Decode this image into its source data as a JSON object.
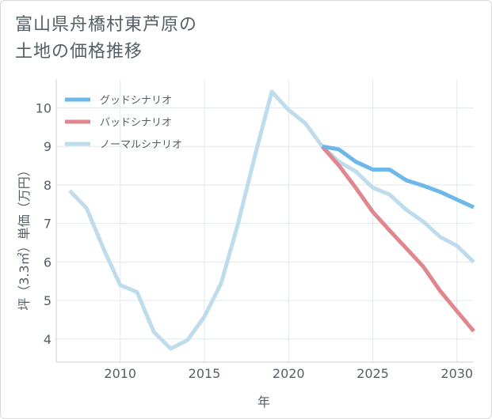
{
  "title_lines": [
    "富山県舟橋村東芦原の",
    "土地の価格推移"
  ],
  "chart_data": {
    "type": "line",
    "xlabel": "年",
    "ylabel": "坪（3.3㎡）単価（万円）",
    "xlim": [
      2006.2,
      2031
    ],
    "ylim": [
      3.4,
      10.75
    ],
    "x_ticks": [
      2010,
      2015,
      2020,
      2025,
      2030
    ],
    "y_ticks": [
      4,
      5,
      6,
      7,
      8,
      9,
      10
    ],
    "grid": true,
    "legend_position": "top-left",
    "series": [
      {
        "name": "グッドシナリオ",
        "color": "#6cb8ea",
        "x": [
          2022,
          2023,
          2024,
          2025,
          2026,
          2027,
          2028,
          2029,
          2030,
          2031
        ],
        "y": [
          9.0,
          8.92,
          8.6,
          8.4,
          8.4,
          8.12,
          7.98,
          7.82,
          7.62,
          7.42
        ]
      },
      {
        "name": "バッドシナリオ",
        "color": "#e0878e",
        "x": [
          2022,
          2023,
          2024,
          2025,
          2026,
          2027,
          2028,
          2029,
          2030,
          2031
        ],
        "y": [
          9.0,
          8.5,
          7.92,
          7.3,
          6.82,
          6.35,
          5.88,
          5.25,
          4.72,
          4.2
        ]
      },
      {
        "name": "ノーマルシナリオ",
        "color": "#bedcec",
        "x": [
          2007,
          2008,
          2009,
          2010,
          2011,
          2012,
          2013,
          2014,
          2015,
          2016,
          2017,
          2018,
          2019,
          2020,
          2021,
          2022,
          2023,
          2024,
          2025,
          2026,
          2027,
          2028,
          2029,
          2030,
          2031
        ],
        "y": [
          7.85,
          7.4,
          6.35,
          5.4,
          5.22,
          4.18,
          3.75,
          3.97,
          4.58,
          5.45,
          7.0,
          8.75,
          10.42,
          9.95,
          9.6,
          9.0,
          8.6,
          8.35,
          7.93,
          7.75,
          7.35,
          7.05,
          6.65,
          6.42,
          6.0
        ]
      }
    ]
  }
}
